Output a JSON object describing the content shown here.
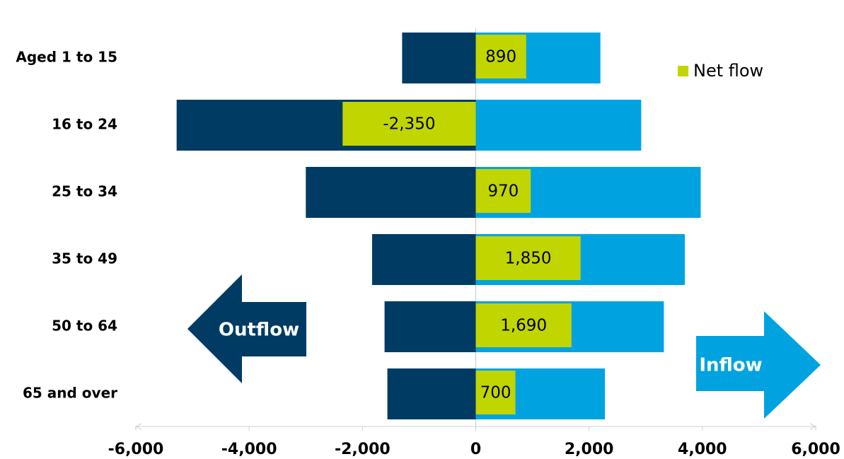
{
  "chart_data": {
    "type": "bar",
    "orientation": "horizontal",
    "categories": [
      "Aged 1 to 15",
      "16 to 24",
      "25 to 34",
      "35 to 49",
      "50 to 64",
      "65 and over"
    ],
    "series": [
      {
        "name": "Outflow",
        "color": "#003b64",
        "values": [
          -1300,
          -5280,
          -3000,
          -1830,
          -1610,
          -1560
        ]
      },
      {
        "name": "Inflow",
        "color": "#00a3e0",
        "values": [
          2200,
          2920,
          3970,
          3690,
          3320,
          2280
        ]
      },
      {
        "name": "Net flow",
        "color": "#c1d500",
        "values": [
          890,
          -2350,
          970,
          1850,
          1690,
          700
        ],
        "value_labels": [
          "890",
          "-2,350",
          "970",
          "1,850",
          "1,690",
          "700"
        ]
      }
    ],
    "xlim": [
      -6000,
      6000
    ],
    "xticks": [
      {
        "value": -6000,
        "label": "-6,000"
      },
      {
        "value": -4000,
        "label": "-4,000"
      },
      {
        "value": -2000,
        "label": "-2,000"
      },
      0,
      {
        "value": 2000,
        "label": "2,000"
      },
      {
        "value": 4000,
        "label": "4,000"
      },
      {
        "value": 6000,
        "label": "6,000"
      }
    ],
    "legend": "upper right",
    "legend_series": [
      2
    ]
  }
}
